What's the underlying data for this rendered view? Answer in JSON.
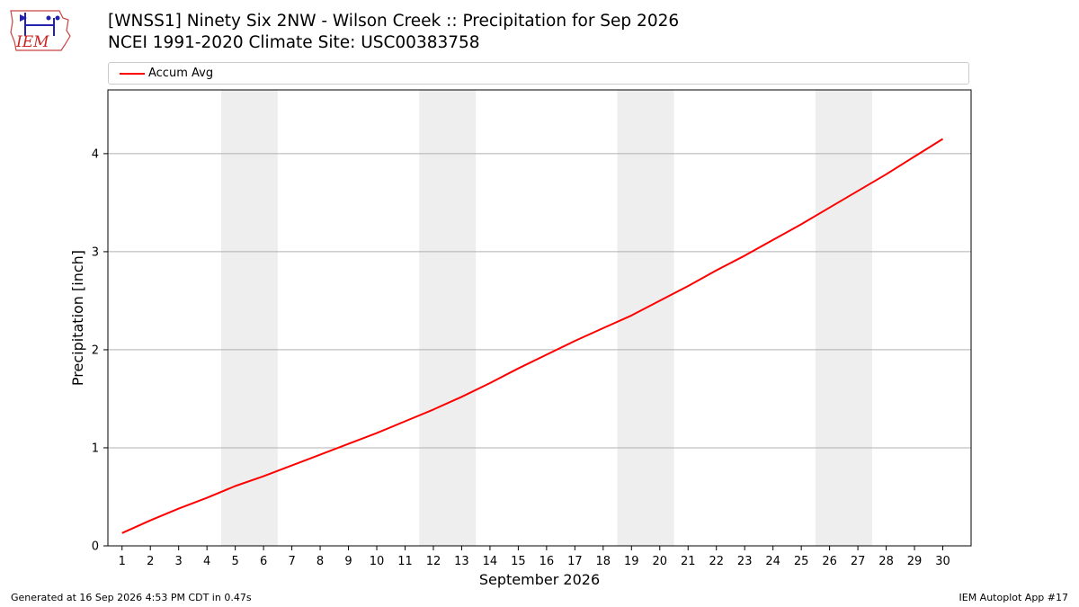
{
  "header": {
    "logo_text": "IEM",
    "title_line1": "[WNSS1] Ninety Six 2NW - Wilson Creek :: Precipitation for Sep 2026",
    "title_line2": "NCEI 1991-2020 Climate Site: USC00383758"
  },
  "footer": {
    "generated": "Generated at 16 Sep 2026 4:53 PM CDT in 0.47s",
    "app": "IEM Autoplot App #17"
  },
  "colors": {
    "series": "#ff0000",
    "weekend_band": "#eeeeee",
    "grid": "#b0b0b0"
  },
  "chart_data": {
    "type": "line",
    "title": "[WNSS1] Ninety Six 2NW - Wilson Creek :: Precipitation for Sep 2026",
    "xlabel": "September 2026",
    "ylabel": "Precipitation [inch]",
    "xlim": [
      0.5,
      31
    ],
    "ylim": [
      0,
      4.65
    ],
    "x_ticks": [
      1,
      2,
      3,
      4,
      5,
      6,
      7,
      8,
      9,
      10,
      11,
      12,
      13,
      14,
      15,
      16,
      17,
      18,
      19,
      20,
      21,
      22,
      23,
      24,
      25,
      26,
      27,
      28,
      29,
      30
    ],
    "y_ticks": [
      0,
      1,
      2,
      3,
      4
    ],
    "grid": "horizontal",
    "legend_position": "top",
    "weekend_bands": [
      [
        4.5,
        6.5
      ],
      [
        11.5,
        13.5
      ],
      [
        18.5,
        20.5
      ],
      [
        25.5,
        27.5
      ]
    ],
    "series": [
      {
        "name": "Accum Avg",
        "x": [
          1,
          2,
          3,
          4,
          5,
          6,
          7,
          8,
          9,
          10,
          11,
          12,
          13,
          14,
          15,
          16,
          17,
          18,
          19,
          20,
          21,
          22,
          23,
          24,
          25,
          26,
          27,
          28,
          29,
          30
        ],
        "values": [
          0.13,
          0.26,
          0.38,
          0.49,
          0.61,
          0.71,
          0.82,
          0.93,
          1.04,
          1.15,
          1.27,
          1.39,
          1.52,
          1.66,
          1.81,
          1.95,
          2.09,
          2.22,
          2.35,
          2.5,
          2.65,
          2.81,
          2.96,
          3.12,
          3.28,
          3.45,
          3.62,
          3.79,
          3.97,
          4.15
        ]
      }
    ]
  }
}
